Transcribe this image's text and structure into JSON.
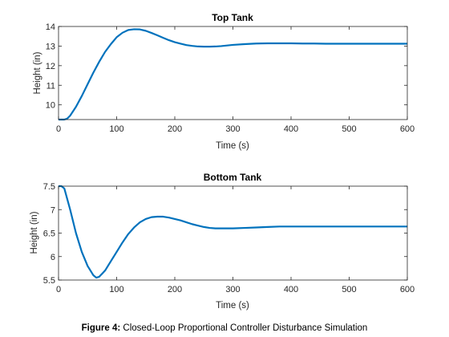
{
  "chart_data": [
    {
      "type": "line",
      "title": "Top Tank",
      "xlabel": "Time (s)",
      "ylabel": "Height (in)",
      "xlim": [
        0,
        600
      ],
      "ylim": [
        9.25,
        14
      ],
      "xticks": [
        "0",
        "100",
        "200",
        "300",
        "400",
        "500",
        "600"
      ],
      "yticks": [
        "10",
        "11",
        "12",
        "13",
        "14"
      ],
      "color": "#0072BD",
      "series": [
        {
          "x": [
            0,
            10,
            15,
            20,
            30,
            40,
            50,
            60,
            70,
            80,
            90,
            100,
            110,
            120,
            130,
            140,
            150,
            160,
            170,
            180,
            190,
            200,
            210,
            220,
            230,
            240,
            250,
            260,
            270,
            280,
            290,
            300,
            320,
            340,
            360,
            380,
            400,
            420,
            440,
            460,
            480,
            500,
            520,
            540,
            560,
            580,
            600
          ],
          "y": [
            9.25,
            9.25,
            9.3,
            9.45,
            9.9,
            10.45,
            11.05,
            11.65,
            12.2,
            12.7,
            13.1,
            13.45,
            13.68,
            13.82,
            13.86,
            13.85,
            13.78,
            13.67,
            13.55,
            13.42,
            13.3,
            13.2,
            13.12,
            13.05,
            13.01,
            12.98,
            12.97,
            12.97,
            12.98,
            13.0,
            13.03,
            13.06,
            13.1,
            13.13,
            13.14,
            13.14,
            13.14,
            13.13,
            13.13,
            13.12,
            13.12,
            13.12,
            13.12,
            13.12,
            13.12,
            13.12,
            13.12
          ]
        }
      ]
    },
    {
      "type": "line",
      "title": "Bottom Tank",
      "xlabel": "Time (s)",
      "ylabel": "Height (in)",
      "xlim": [
        0,
        600
      ],
      "ylim": [
        5.5,
        7.5
      ],
      "xticks": [
        "0",
        "100",
        "200",
        "300",
        "400",
        "500",
        "600"
      ],
      "yticks": [
        "5.5",
        "6",
        "6.5",
        "7",
        "7.5"
      ],
      "color": "#0072BD",
      "series": [
        {
          "x": [
            0,
            5,
            10,
            20,
            30,
            40,
            50,
            60,
            65,
            70,
            80,
            90,
            100,
            110,
            120,
            130,
            140,
            150,
            160,
            170,
            180,
            190,
            200,
            210,
            220,
            230,
            240,
            250,
            260,
            270,
            280,
            290,
            300,
            320,
            340,
            360,
            380,
            400,
            420,
            440,
            460,
            480,
            500,
            520,
            540,
            560,
            580,
            600
          ],
          "y": [
            7.5,
            7.5,
            7.45,
            7.0,
            6.5,
            6.1,
            5.8,
            5.6,
            5.55,
            5.57,
            5.7,
            5.9,
            6.1,
            6.3,
            6.48,
            6.62,
            6.73,
            6.8,
            6.84,
            6.85,
            6.85,
            6.83,
            6.8,
            6.77,
            6.73,
            6.69,
            6.66,
            6.63,
            6.61,
            6.6,
            6.6,
            6.6,
            6.6,
            6.61,
            6.62,
            6.63,
            6.64,
            6.64,
            6.64,
            6.64,
            6.64,
            6.64,
            6.64,
            6.64,
            6.64,
            6.64,
            6.64,
            6.64
          ]
        }
      ]
    }
  ],
  "caption": {
    "label": "Figure 4:",
    "text": "Closed-Loop Proportional Controller Disturbance Simulation"
  }
}
